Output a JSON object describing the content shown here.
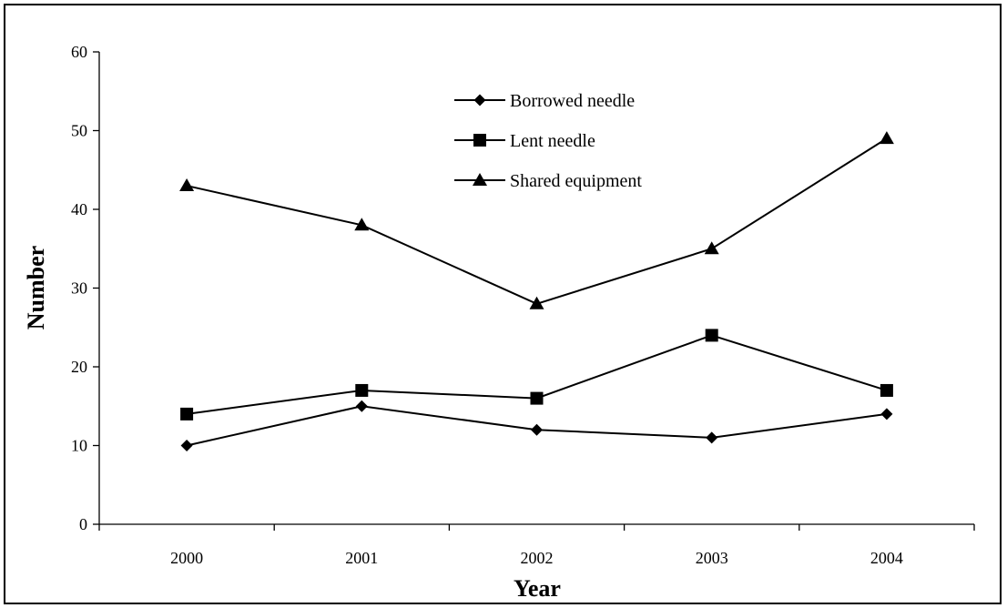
{
  "chart_data": {
    "type": "line",
    "categories": [
      "2000",
      "2001",
      "2002",
      "2003",
      "2004"
    ],
    "series": [
      {
        "name": "Borrowed needle",
        "marker": "diamond",
        "values": [
          10,
          15,
          12,
          11,
          14
        ]
      },
      {
        "name": "Lent needle",
        "marker": "square",
        "values": [
          14,
          17,
          16,
          24,
          17
        ]
      },
      {
        "name": "Shared equipment",
        "marker": "triangle",
        "values": [
          43,
          38,
          28,
          35,
          49
        ]
      }
    ],
    "title": "",
    "xlabel": "Year",
    "ylabel": "Number",
    "ylim": [
      0,
      60
    ],
    "yticks": [
      "0",
      "10",
      "20",
      "30",
      "40",
      "50",
      "60"
    ],
    "grid": false,
    "legend": "top-center",
    "colors": {
      "line": "#000000",
      "marker": "#000000",
      "axis": "#000000"
    }
  }
}
